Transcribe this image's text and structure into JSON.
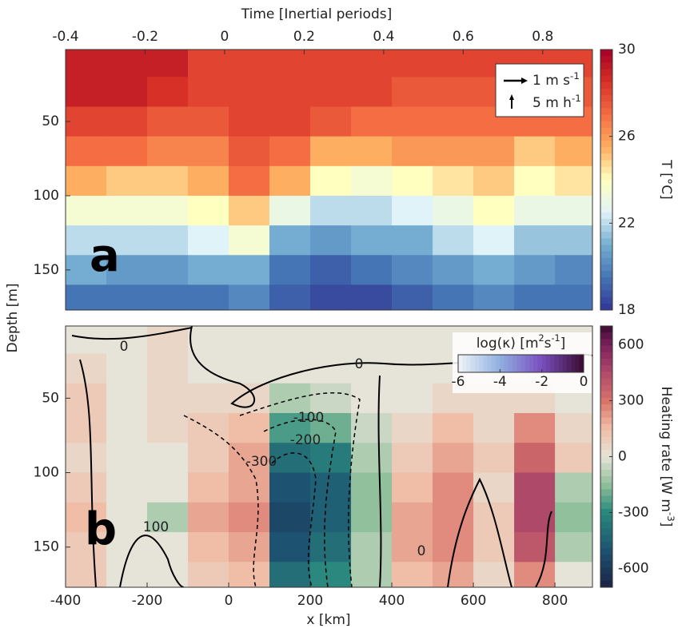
{
  "chart_data": [
    {
      "type": "heatmap",
      "panel_label": "a",
      "top_label": "Time [Inertial periods]",
      "tlim": [
        -0.4,
        0.925
      ],
      "tticks": [
        -0.4,
        -0.2,
        0,
        0.2,
        0.4,
        0.6,
        0.8
      ],
      "y_label": "Depth [m]",
      "xlim": [
        -400,
        892
      ],
      "ylim": [
        1.5,
        177
      ],
      "y_inverted": true,
      "yticks": [
        50,
        100,
        150
      ],
      "x": [
        -350,
        -250,
        -150,
        -50,
        50,
        150,
        250,
        350,
        450,
        550,
        650,
        750,
        850
      ],
      "y": [
        10,
        30,
        50,
        70,
        90,
        110,
        130,
        150,
        170
      ],
      "values": [
        [
          29,
          29,
          29,
          28,
          28,
          28,
          28,
          28,
          28,
          28,
          28,
          28,
          28
        ],
        [
          29,
          29,
          28.5,
          28,
          28,
          28,
          28,
          28,
          27.5,
          27.5,
          27.5,
          27.5,
          27.5
        ],
        [
          28,
          28,
          27.5,
          27.5,
          28,
          28,
          27.5,
          27,
          27,
          27,
          27,
          27,
          27
        ],
        [
          27,
          27,
          26.5,
          26.5,
          27.5,
          27,
          25.5,
          25.5,
          26,
          26,
          26,
          25,
          25.5
        ],
        [
          25.5,
          25,
          25,
          25.5,
          27,
          25.5,
          24,
          23.5,
          24,
          24.5,
          25,
          24,
          24.5
        ],
        [
          23.5,
          23.5,
          23.5,
          24,
          25,
          23,
          22,
          22,
          22.5,
          23,
          24,
          23,
          23
        ],
        [
          22,
          22,
          22,
          22.5,
          23.5,
          21,
          20.5,
          21,
          21,
          22,
          22.5,
          21.5,
          21.5
        ],
        [
          21,
          20.5,
          20.5,
          21,
          21,
          19.5,
          19,
          19.5,
          20,
          20.5,
          21,
          20.5,
          20
        ],
        [
          19.5,
          19.5,
          19.5,
          19.5,
          20,
          19,
          18.5,
          18.5,
          19,
          19.5,
          20,
          19.5,
          19.5
        ]
      ],
      "clim": [
        18,
        30
      ],
      "cticks": [
        18,
        22,
        26,
        30
      ],
      "colorbar_label": [
        {
          "t": "T [°C]"
        }
      ],
      "legend": [
        [
          {
            "t": "1 m s"
          },
          {
            "sup": "-1"
          }
        ],
        [
          {
            "t": "5 m h"
          },
          {
            "sup": "-1"
          }
        ]
      ]
    },
    {
      "type": "heatmap",
      "panel_label": "b",
      "x_label": "x [km]",
      "xlim": [
        -400,
        892
      ],
      "xticks": [
        -400,
        -200,
        0,
        200,
        400,
        600,
        800
      ],
      "ylim": [
        1.5,
        177
      ],
      "y_inverted": true,
      "yticks": [
        50,
        100,
        150
      ],
      "x": [
        -350,
        -250,
        -150,
        -50,
        50,
        150,
        250,
        350,
        450,
        550,
        650,
        750,
        850
      ],
      "y": [
        10,
        30,
        50,
        70,
        90,
        110,
        130,
        150,
        170
      ],
      "values": [
        [
          0,
          0,
          50,
          0,
          0,
          0,
          0,
          0,
          0,
          0,
          0,
          0,
          0
        ],
        [
          50,
          0,
          50,
          0,
          0,
          0,
          0,
          0,
          0,
          0,
          0,
          0,
          0
        ],
        [
          100,
          0,
          50,
          50,
          50,
          -100,
          -50,
          0,
          0,
          50,
          50,
          50,
          0
        ],
        [
          100,
          0,
          50,
          100,
          150,
          -250,
          -200,
          -50,
          50,
          150,
          50,
          250,
          50
        ],
        [
          50,
          0,
          0,
          100,
          200,
          -400,
          -350,
          -100,
          100,
          200,
          100,
          350,
          100
        ],
        [
          100,
          0,
          0,
          150,
          200,
          -500,
          -450,
          -150,
          150,
          250,
          50,
          450,
          -100
        ],
        [
          150,
          0,
          -100,
          200,
          250,
          -550,
          -450,
          -150,
          200,
          250,
          100,
          450,
          -150
        ],
        [
          100,
          0,
          0,
          150,
          200,
          -500,
          -400,
          -100,
          200,
          250,
          100,
          400,
          -100
        ],
        [
          100,
          0,
          0,
          100,
          150,
          -400,
          -300,
          -100,
          150,
          200,
          50,
          250,
          0
        ]
      ],
      "clim": [
        -700,
        700
      ],
      "cticks": [
        -600,
        -300,
        0,
        300,
        600
      ],
      "colorbar_label": [
        {
          "t": "Heating rate [W m"
        },
        {
          "sup": "-3"
        },
        {
          "t": "]"
        }
      ],
      "contour_labels": [
        0,
        0,
        -100,
        -200,
        -300,
        100,
        0
      ],
      "inset_colorbar": {
        "label": [
          {
            "t": "log(κ) [m"
          },
          {
            "sup": "2"
          },
          {
            "t": "s"
          },
          {
            "sup": "-1"
          },
          {
            "t": "]"
          }
        ],
        "clim": [
          -6,
          0
        ],
        "cticks": [
          -6,
          -4,
          -2,
          0
        ]
      }
    }
  ]
}
